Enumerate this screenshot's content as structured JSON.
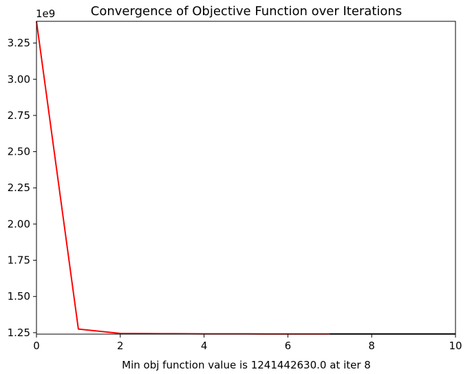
{
  "chart_data": {
    "type": "line",
    "title": "Convergence of Objective Function over Iterations",
    "xlabel": "Min obj function value is 1241442630.0 at iter 8",
    "ylabel": "",
    "y_offset_label": "1e9",
    "xlim": [
      0,
      10
    ],
    "ylim": [
      1.24,
      3.4
    ],
    "y_scale_factor": 1000000000,
    "x_ticks": [
      0,
      2,
      4,
      6,
      8,
      10
    ],
    "x_tick_labels": [
      "0",
      "2",
      "4",
      "6",
      "8",
      "10"
    ],
    "y_ticks": [
      1.25,
      1.5,
      1.75,
      2.0,
      2.25,
      2.5,
      2.75,
      3.0,
      3.25
    ],
    "y_tick_labels": [
      "1.25",
      "1.50",
      "1.75",
      "2.00",
      "2.25",
      "2.50",
      "2.75",
      "3.00",
      "3.25"
    ],
    "grid": false,
    "series": [
      {
        "color": "#ff0000",
        "x": [
          0,
          1,
          2,
          3,
          4,
          5,
          6,
          7
        ],
        "y": [
          3.4,
          1.275,
          1.245,
          1.243,
          1.242,
          1.2415,
          1.2414,
          1.2414
        ]
      },
      {
        "color": "#000000",
        "x": [
          7,
          8,
          9,
          10
        ],
        "y": [
          1.2414,
          1.2414,
          1.2414,
          1.2414
        ]
      }
    ]
  }
}
